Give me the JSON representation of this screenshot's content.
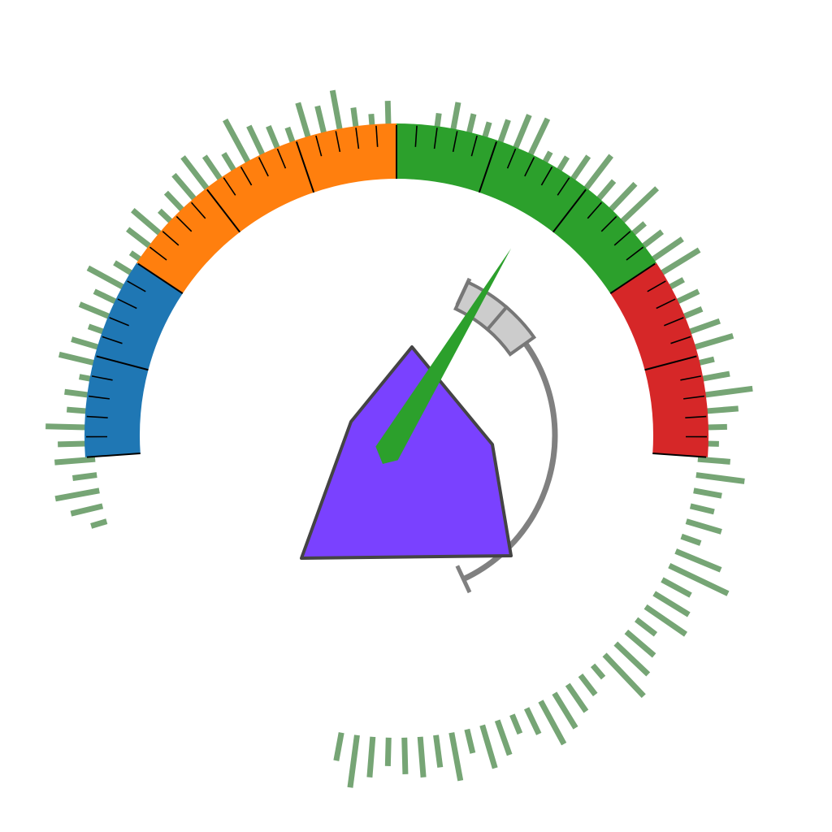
{
  "chart_data": {
    "type": "gauge",
    "scale": {
      "min": 0,
      "max": 100,
      "major_step": 10,
      "minor_step": 2
    },
    "bands": [
      {
        "name": "",
        "from": 0,
        "to": 20,
        "color": "#1f77b4"
      },
      {
        "name": "",
        "from": 20,
        "to": 50,
        "color": "#ff7f0e"
      },
      {
        "name": "",
        "from": 50,
        "to": 80,
        "color": "#2ca02c"
      },
      {
        "name": "",
        "from": 80,
        "to": 100,
        "color": "#d62728"
      }
    ],
    "needle": {
      "value": 71,
      "color": "#2ca02c"
    },
    "range_indicator": {
      "from": 0,
      "to": 75,
      "highlight_from": 58,
      "highlight_to": 75,
      "track_color": "#808080",
      "highlight_color": "#cccccc"
    },
    "polygon": {
      "color": "#7a41ff",
      "stroke": "#444444"
    },
    "radial_bars": {
      "color": "#76a575",
      "values": [
        3,
        12,
        28,
        45,
        35,
        30,
        40,
        55,
        60,
        25,
        30,
        45,
        62,
        40,
        55,
        70,
        30,
        40,
        55,
        65,
        30,
        40,
        35,
        50,
        60,
        30,
        45,
        70,
        50,
        35,
        25,
        40,
        60,
        35,
        30,
        45,
        25,
        60,
        80,
        40,
        50,
        60,
        30,
        45,
        55,
        70,
        20,
        30,
        40,
        50,
        60,
        35,
        25,
        45,
        55,
        30,
        60,
        40,
        50,
        45,
        35,
        50,
        65,
        35,
        0,
        0,
        0,
        0,
        0,
        0,
        0,
        0,
        0,
        0,
        0,
        0,
        0,
        0,
        0,
        0,
        0,
        0,
        0,
        0,
        20,
        40,
        55,
        30,
        50,
        45,
        60,
        35,
        40,
        25,
        55,
        45,
        30,
        50,
        40,
        60,
        35,
        25,
        45,
        55,
        30,
        40,
        50,
        60,
        45,
        35,
        70,
        50,
        40,
        30,
        55,
        45,
        60,
        35,
        25,
        40
      ]
    }
  }
}
